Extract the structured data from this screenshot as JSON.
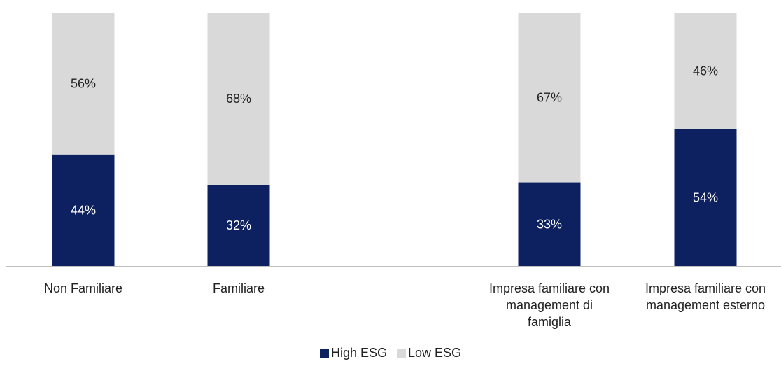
{
  "chart_data": {
    "type": "bar",
    "stacked": true,
    "percent_stacked": true,
    "categories": [
      "Non Familiare",
      "Familiare",
      "Impresa familiare con\nmanagement di\nfamiglia",
      "Impresa familiare con\nmanagement esterno"
    ],
    "series": [
      {
        "name": "High ESG",
        "values": [
          44,
          32,
          33,
          54
        ],
        "labels": [
          "44%",
          "32%",
          "33%",
          "54%"
        ],
        "color": "#0d2160",
        "label_color": "#ffffff"
      },
      {
        "name": "Low ESG",
        "values": [
          56,
          68,
          67,
          46
        ],
        "labels": [
          "56%",
          "68%",
          "67%",
          "46%"
        ],
        "color": "#d9d9d9",
        "label_color": "#222222"
      }
    ],
    "ylim": [
      0,
      100
    ],
    "grid": false,
    "legend_position": "bottom-center",
    "colors": {
      "axis": "#bfbfbf",
      "text": "#222222"
    }
  }
}
